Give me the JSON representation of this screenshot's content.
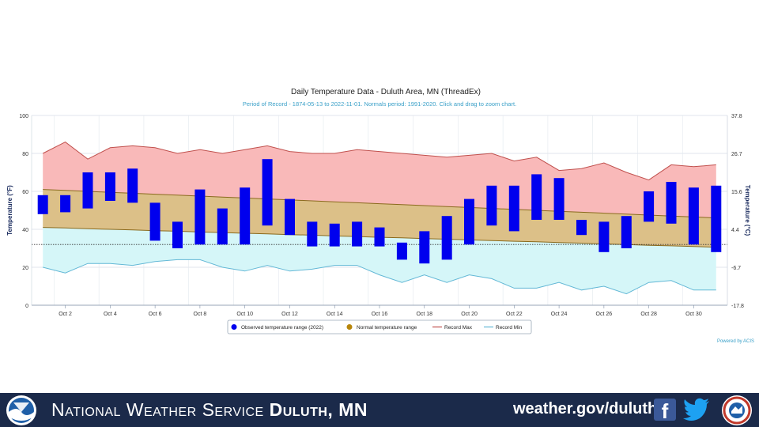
{
  "chart_data": {
    "type": "bar",
    "title": "Daily Temperature Data - Duluth Area, MN (ThreadEx)",
    "subtitle": "Period of Record - 1874-05-13 to 2022-11-01. Normals period: 1991-2020. Click and drag to zoom chart.",
    "ylabel_left": "Temperature (°F)",
    "ylabel_right": "Temperature (°C)",
    "ylim": [
      0,
      100
    ],
    "yticks_left": [
      "0",
      "20",
      "40",
      "60",
      "80",
      "100"
    ],
    "yticks_right": [
      "-17.8",
      "-6.7",
      "4.4",
      "15.6",
      "26.7",
      "37.8"
    ],
    "grid": true,
    "x_labels": [
      "Oct 2",
      "Oct 4",
      "Oct 6",
      "Oct 8",
      "Oct 10",
      "Oct 12",
      "Oct 14",
      "Oct 16",
      "Oct 18",
      "Oct 20",
      "Oct 22",
      "Oct 24",
      "Oct 26",
      "Oct 28",
      "Oct 30"
    ],
    "days": [
      1,
      2,
      3,
      4,
      5,
      6,
      7,
      8,
      9,
      10,
      11,
      12,
      13,
      14,
      15,
      16,
      17,
      18,
      19,
      20,
      21,
      22,
      23,
      24,
      25,
      26,
      27,
      28,
      29,
      30,
      31
    ],
    "observed_low": [
      48,
      49,
      51,
      55,
      54,
      34,
      30,
      32,
      32,
      32,
      42,
      37,
      31,
      31,
      31,
      31,
      24,
      22,
      24,
      32,
      42,
      39,
      45,
      45,
      37,
      28,
      30,
      44,
      43,
      32,
      28
    ],
    "observed_high": [
      58,
      58,
      70,
      70,
      72,
      54,
      44,
      61,
      51,
      62,
      77,
      56,
      44,
      43,
      44,
      41,
      33,
      39,
      47,
      56,
      63,
      63,
      69,
      67,
      45,
      44,
      47,
      60,
      65,
      62,
      63
    ],
    "normal_high": [
      61,
      60.5,
      60,
      59.5,
      59,
      58.5,
      58,
      57.5,
      57,
      56.5,
      56,
      55.5,
      55,
      54.5,
      54,
      53.5,
      53,
      52.5,
      52,
      51.5,
      51,
      50.5,
      50,
      49.5,
      49,
      48.5,
      48,
      47.5,
      47,
      46.5,
      46
    ],
    "normal_low": [
      41,
      40.7,
      40.3,
      40,
      39.7,
      39.3,
      39,
      38.6,
      38.3,
      37.9,
      37.6,
      37.2,
      36.9,
      36.5,
      36.2,
      35.8,
      35.5,
      35.1,
      34.8,
      34.4,
      34.1,
      33.7,
      33.4,
      33,
      32.7,
      32.3,
      32,
      31.6,
      31.3,
      30.9,
      30.6
    ],
    "record_max": [
      80,
      86,
      77,
      83,
      84,
      83,
      80,
      82,
      80,
      82,
      84,
      81,
      80,
      80,
      82,
      81,
      80,
      79,
      78,
      79,
      80,
      76,
      78,
      71,
      72,
      75,
      70,
      66,
      74,
      73,
      74
    ],
    "record_min": [
      20,
      17,
      22,
      22,
      21,
      23,
      24,
      24,
      20,
      18,
      21,
      18,
      19,
      21,
      21,
      16,
      12,
      16,
      12,
      16,
      14,
      9,
      9,
      12,
      8,
      10,
      6,
      12,
      13,
      8,
      8
    ],
    "freezing_line": 32,
    "series": [
      {
        "name": "Observed temperature range (2022)",
        "color": "#0000ee"
      },
      {
        "name": "Normal temperature range",
        "color": "#b8860b"
      },
      {
        "name": "Record Max",
        "color": "#c0504d"
      },
      {
        "name": "Record Min",
        "color": "#63b8d6"
      }
    ],
    "legend_placement": "bottom-center",
    "credit": "Powered by ACIS"
  },
  "footer": {
    "title_regular": "National Weather Service ",
    "title_bold": "Duluth, MN",
    "url": "weather.gov/duluth",
    "facebook_icon": "facebook-icon",
    "twitter_icon": "twitter-icon",
    "background": "#1b2a4a"
  }
}
